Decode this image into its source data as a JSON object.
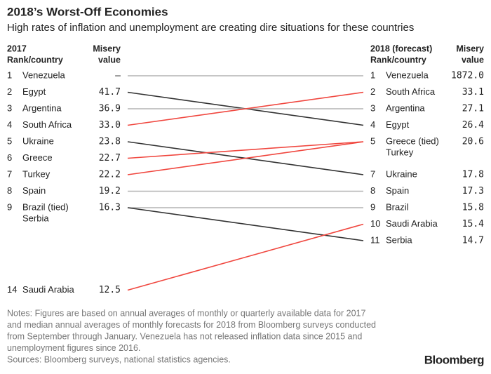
{
  "chart_data": {
    "type": "slope",
    "title": "2018’s Worst-Off Economies",
    "subtitle": "High rates of inflation and unemployment are creating dire situations for these countries",
    "left": {
      "rank_header": [
        "2017",
        "Rank/country"
      ],
      "value_header": [
        "Misery",
        "value"
      ],
      "ranks": [
        1,
        2,
        3,
        4,
        5,
        6,
        7,
        8,
        9,
        14
      ],
      "names": [
        [
          "Venezuela"
        ],
        [
          "Egypt"
        ],
        [
          "Argentina"
        ],
        [
          "South Africa"
        ],
        [
          "Ukraine"
        ],
        [
          "Greece"
        ],
        [
          "Turkey"
        ],
        [
          "Spain"
        ],
        [
          "Brazil (tied)",
          "Serbia"
        ],
        [
          "Saudi Arabia"
        ]
      ],
      "values": [
        null,
        41.7,
        36.9,
        33,
        23.8,
        22.7,
        22.2,
        19.2,
        16.3,
        12.5
      ],
      "value_labels": [
        "–",
        "41.7",
        "36.9",
        "33.0",
        "23.8",
        "22.7",
        "22.2",
        "19.2",
        "16.3",
        "12.5"
      ]
    },
    "right": {
      "rank_header": [
        "2018 (forecast)",
        "Rank/country"
      ],
      "value_header": [
        "Misery",
        "value"
      ],
      "ranks": [
        1,
        2,
        3,
        4,
        5,
        7,
        8,
        9,
        10,
        11
      ],
      "names": [
        [
          "Venezuela"
        ],
        [
          "South Africa"
        ],
        [
          "Argentina"
        ],
        [
          "Egypt"
        ],
        [
          "Greece (tied)",
          "Turkey"
        ],
        [
          "Ukraine"
        ],
        [
          "Spain"
        ],
        [
          "Brazil"
        ],
        [
          "Saudi Arabia"
        ],
        [
          "Serbia"
        ]
      ],
      "values": [
        1872,
        33.1,
        27.1,
        26.4,
        20.6,
        17.8,
        17.3,
        15.8,
        15.4,
        14.7
      ],
      "value_labels": [
        "1872.0",
        "33.1",
        "27.1",
        "26.4",
        "20.6",
        "17.8",
        "17.3",
        "15.8",
        "15.4",
        "14.7"
      ]
    },
    "links": [
      {
        "from": 0,
        "to": 0,
        "color": "#b3b3b3"
      },
      {
        "from": 1,
        "to": 3,
        "color": "#333333"
      },
      {
        "from": 2,
        "to": 2,
        "color": "#b3b3b3"
      },
      {
        "from": 3,
        "to": 1,
        "color": "#f0473f"
      },
      {
        "from": 4,
        "to": 5,
        "color": "#333333"
      },
      {
        "from": 5,
        "to": 4,
        "color": "#f0473f"
      },
      {
        "from": 6,
        "to": 4,
        "color": "#f0473f"
      },
      {
        "from": 7,
        "to": 6,
        "color": "#b3b3b3"
      },
      {
        "from": 8,
        "to": 7,
        "color": "#b3b3b3"
      },
      {
        "from": 8,
        "to": 9,
        "color": "#333333"
      },
      {
        "from": 9,
        "to": 8,
        "color": "#f0473f"
      }
    ],
    "notes": [
      "Notes: Figures are based on annual averages of monthly or quarterly available data for 2017",
      "and median annual averages of monthly forecasts for 2018 from Bloomberg surveys conducted",
      "from September through January. Venezuela has not released inflation data since 2015 and",
      "unemployment figures since 2016.",
      "Sources: Bloomberg surveys, national statistics agencies."
    ],
    "logo": "Bloomberg"
  }
}
